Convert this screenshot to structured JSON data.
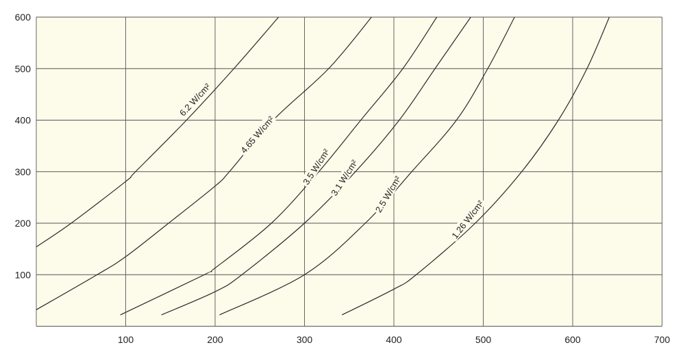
{
  "chart_data": {
    "type": "line",
    "title": "",
    "xlabel": "",
    "ylabel": "",
    "xlim": [
      0,
      700
    ],
    "ylim": [
      0,
      600
    ],
    "x_ticks": [
      100,
      200,
      300,
      400,
      500,
      600,
      700
    ],
    "y_ticks": [
      100,
      200,
      300,
      400,
      500,
      600
    ],
    "grid": true,
    "background_color": "#fdfbea",
    "line_color": "#2a2a2a",
    "series": [
      {
        "name": "6.2 W/cm²",
        "points": [
          [
            0,
            154
          ],
          [
            39,
            200
          ],
          [
            100,
            281
          ],
          [
            111,
            300
          ],
          [
            168,
            400
          ],
          [
            221,
            500
          ],
          [
            271,
            600
          ]
        ]
      },
      {
        "name": "4.65 W/cm²",
        "points": [
          [
            0,
            32
          ],
          [
            68,
            100
          ],
          [
            100,
            135
          ],
          [
            148,
            200
          ],
          [
            200,
            272
          ],
          [
            216,
            300
          ],
          [
            265,
            400
          ],
          [
            327,
            500
          ],
          [
            375,
            600
          ]
        ]
      },
      {
        "name": "3.5 W/cm²",
        "points": [
          [
            94,
            22
          ],
          [
            188,
            100
          ],
          [
            200,
            113
          ],
          [
            263,
            200
          ],
          [
            316,
            300
          ],
          [
            363,
            400
          ],
          [
            410,
            500
          ],
          [
            448,
            600
          ]
        ]
      },
      {
        "name": "3.1 W/cm²",
        "points": [
          [
            140,
            22
          ],
          [
            200,
            67
          ],
          [
            230,
            100
          ],
          [
            300,
            200
          ],
          [
            357,
            300
          ],
          [
            406,
            400
          ],
          [
            446,
            500
          ],
          [
            486,
            600
          ]
        ]
      },
      {
        "name": "2.5 W/cm²",
        "points": [
          [
            205,
            22
          ],
          [
            300,
            100
          ],
          [
            368,
            200
          ],
          [
            420,
            300
          ],
          [
            470,
            400
          ],
          [
            505,
            500
          ],
          [
            535,
            600
          ]
        ]
      },
      {
        "name": "1.26 W/cm²",
        "points": [
          [
            342,
            22
          ],
          [
            400,
            72
          ],
          [
            425,
            100
          ],
          [
            491,
            200
          ],
          [
            543,
            300
          ],
          [
            584,
            400
          ],
          [
            616,
            500
          ],
          [
            641,
            600
          ]
        ]
      }
    ]
  }
}
